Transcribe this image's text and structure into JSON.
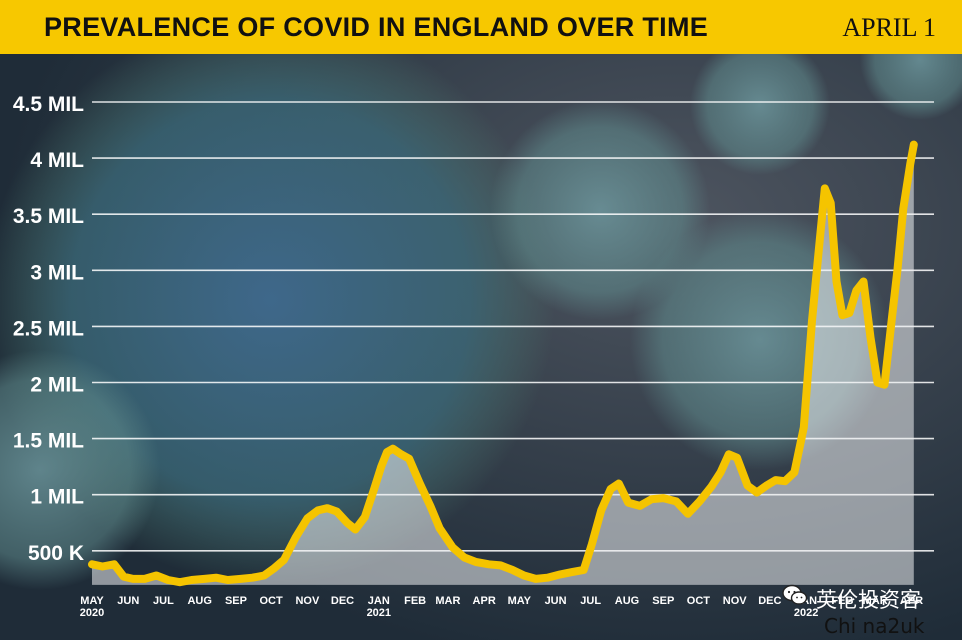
{
  "header": {
    "title": "PREVALENCE OF COVID IN ENGLAND OVER TIME",
    "date": "APRIL 1"
  },
  "watermark": {
    "cn_text": "英伦投资客",
    "en_text": "Chi na2uk"
  },
  "colors": {
    "accent": "#f7c800",
    "line": "#f5c400",
    "area_fill": "#eef0f2",
    "gridline": "#ffffff",
    "axis_text": "#ffffff"
  },
  "chart_data": {
    "type": "area",
    "title": "PREVALENCE OF COVID IN ENGLAND OVER TIME",
    "xlabel": "",
    "ylabel": "",
    "xlim": [
      "2020-05-01",
      "2022-04-10"
    ],
    "ylim": [
      0,
      4.5
    ],
    "y_unit": "million",
    "grid": true,
    "y_ticks": [
      {
        "value": 0.5,
        "label": "500 K"
      },
      {
        "value": 1.0,
        "label": "1 MIL"
      },
      {
        "value": 1.5,
        "label": "1.5 MIL"
      },
      {
        "value": 2.0,
        "label": "2 MIL"
      },
      {
        "value": 2.5,
        "label": "2.5 MIL"
      },
      {
        "value": 3.0,
        "label": "3 MIL"
      },
      {
        "value": 3.5,
        "label": "3.5 MIL"
      },
      {
        "value": 4.0,
        "label": "4 MIL"
      },
      {
        "value": 4.5,
        "label": "4.5 MIL"
      }
    ],
    "x_ticks": [
      {
        "date": "2020-05-01",
        "label": "MAY",
        "sublabel": "2020"
      },
      {
        "date": "2020-06-01",
        "label": "JUN"
      },
      {
        "date": "2020-07-01",
        "label": "JUL"
      },
      {
        "date": "2020-08-01",
        "label": "AUG"
      },
      {
        "date": "2020-09-01",
        "label": "SEP"
      },
      {
        "date": "2020-10-01",
        "label": "OCT"
      },
      {
        "date": "2020-11-01",
        "label": "NOV"
      },
      {
        "date": "2020-12-01",
        "label": "DEC"
      },
      {
        "date": "2021-01-01",
        "label": "JAN",
        "sublabel": "2021"
      },
      {
        "date": "2021-02-01",
        "label": "FEB"
      },
      {
        "date": "2021-03-01",
        "label": "MAR"
      },
      {
        "date": "2021-04-01",
        "label": "APR"
      },
      {
        "date": "2021-05-01",
        "label": "MAY"
      },
      {
        "date": "2021-06-01",
        "label": "JUN"
      },
      {
        "date": "2021-07-01",
        "label": "JUL"
      },
      {
        "date": "2021-08-01",
        "label": "AUG"
      },
      {
        "date": "2021-09-01",
        "label": "SEP"
      },
      {
        "date": "2021-10-01",
        "label": "OCT"
      },
      {
        "date": "2021-11-01",
        "label": "NOV"
      },
      {
        "date": "2021-12-01",
        "label": "DEC"
      },
      {
        "date": "2022-01-01",
        "label": "JAN",
        "sublabel": "2022"
      },
      {
        "date": "2022-02-01",
        "label": "FEB"
      },
      {
        "date": "2022-03-01",
        "label": "MAR"
      },
      {
        "date": "2022-04-01",
        "label": "APR"
      }
    ],
    "series": [
      {
        "points": [
          [
            "2020-05-01",
            0.38
          ],
          [
            "2020-05-10",
            0.36
          ],
          [
            "2020-05-20",
            0.38
          ],
          [
            "2020-05-28",
            0.27
          ],
          [
            "2020-06-05",
            0.25
          ],
          [
            "2020-06-15",
            0.25
          ],
          [
            "2020-06-25",
            0.28
          ],
          [
            "2020-07-05",
            0.24
          ],
          [
            "2020-07-15",
            0.22
          ],
          [
            "2020-07-25",
            0.24
          ],
          [
            "2020-08-05",
            0.25
          ],
          [
            "2020-08-15",
            0.26
          ],
          [
            "2020-08-25",
            0.24
          ],
          [
            "2020-09-05",
            0.25
          ],
          [
            "2020-09-15",
            0.26
          ],
          [
            "2020-09-25",
            0.28
          ],
          [
            "2020-10-03",
            0.34
          ],
          [
            "2020-10-12",
            0.42
          ],
          [
            "2020-10-22",
            0.62
          ],
          [
            "2020-11-01",
            0.79
          ],
          [
            "2020-11-10",
            0.86
          ],
          [
            "2020-11-18",
            0.88
          ],
          [
            "2020-11-26",
            0.85
          ],
          [
            "2020-12-05",
            0.75
          ],
          [
            "2020-12-12",
            0.69
          ],
          [
            "2020-12-20",
            0.8
          ],
          [
            "2020-12-28",
            1.05
          ],
          [
            "2021-01-03",
            1.25
          ],
          [
            "2021-01-08",
            1.38
          ],
          [
            "2021-01-13",
            1.41
          ],
          [
            "2021-01-20",
            1.36
          ],
          [
            "2021-01-27",
            1.32
          ],
          [
            "2021-02-05",
            1.1
          ],
          [
            "2021-02-14",
            0.9
          ],
          [
            "2021-02-22",
            0.7
          ],
          [
            "2021-03-05",
            0.53
          ],
          [
            "2021-03-15",
            0.44
          ],
          [
            "2021-03-25",
            0.4
          ],
          [
            "2021-04-05",
            0.38
          ],
          [
            "2021-04-15",
            0.37
          ],
          [
            "2021-04-25",
            0.33
          ],
          [
            "2021-05-05",
            0.28
          ],
          [
            "2021-05-15",
            0.25
          ],
          [
            "2021-05-25",
            0.26
          ],
          [
            "2021-06-05",
            0.29
          ],
          [
            "2021-06-15",
            0.31
          ],
          [
            "2021-06-25",
            0.33
          ],
          [
            "2021-07-02",
            0.56
          ],
          [
            "2021-07-10",
            0.86
          ],
          [
            "2021-07-18",
            1.05
          ],
          [
            "2021-07-25",
            1.1
          ],
          [
            "2021-08-02",
            0.93
          ],
          [
            "2021-08-12",
            0.9
          ],
          [
            "2021-08-22",
            0.96
          ],
          [
            "2021-09-01",
            0.97
          ],
          [
            "2021-09-12",
            0.94
          ],
          [
            "2021-09-22",
            0.83
          ],
          [
            "2021-10-02",
            0.94
          ],
          [
            "2021-10-12",
            1.07
          ],
          [
            "2021-10-20",
            1.2
          ],
          [
            "2021-10-27",
            1.36
          ],
          [
            "2021-11-03",
            1.33
          ],
          [
            "2021-11-12",
            1.08
          ],
          [
            "2021-11-20",
            1.02
          ],
          [
            "2021-11-28",
            1.08
          ],
          [
            "2021-12-06",
            1.13
          ],
          [
            "2021-12-14",
            1.12
          ],
          [
            "2021-12-22",
            1.2
          ],
          [
            "2021-12-30",
            1.6
          ],
          [
            "2022-01-06",
            2.55
          ],
          [
            "2022-01-12",
            3.2
          ],
          [
            "2022-01-17",
            3.73
          ],
          [
            "2022-01-22",
            3.6
          ],
          [
            "2022-01-27",
            2.9
          ],
          [
            "2022-02-01",
            2.6
          ],
          [
            "2022-02-07",
            2.62
          ],
          [
            "2022-02-13",
            2.82
          ],
          [
            "2022-02-19",
            2.9
          ],
          [
            "2022-02-25",
            2.4
          ],
          [
            "2022-03-03",
            2.0
          ],
          [
            "2022-03-09",
            1.98
          ],
          [
            "2022-03-15",
            2.55
          ],
          [
            "2022-03-20",
            3.0
          ],
          [
            "2022-03-25",
            3.55
          ],
          [
            "2022-03-31",
            3.95
          ],
          [
            "2022-04-03",
            4.12
          ]
        ]
      }
    ]
  }
}
